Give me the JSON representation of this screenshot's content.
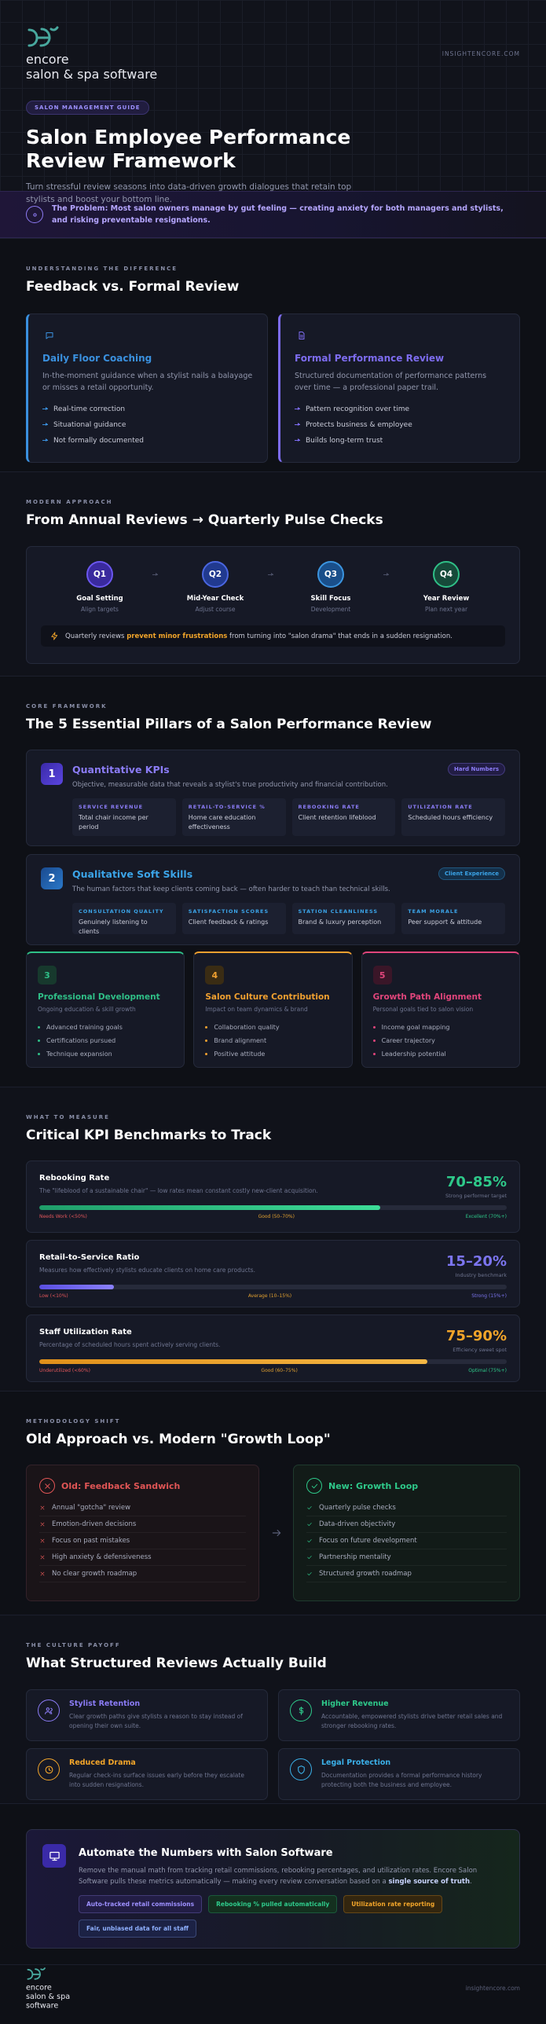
{
  "header": {
    "logo": {
      "name": "encore",
      "tagline": "salon & spa software"
    },
    "site": "INSIGHTENCORE.COM",
    "badge": "SALON MANAGEMENT GUIDE",
    "title": "Salon Employee Performance Review Framework",
    "subtitle": "Turn stressful review seasons into data-driven growth dialogues that retain top stylists and boost your bottom line."
  },
  "problem": {
    "text": "The Problem: Most salon owners manage by gut feeling — creating anxiety for both managers and stylists, and risking preventable resignations."
  },
  "comparison": {
    "eyebrow": "UNDERSTANDING THE DIFFERENCE",
    "heading": "Feedback vs. Formal Review",
    "cards": [
      {
        "title": "Daily Floor Coaching",
        "description": "In-the-moment guidance when a stylist nails a balayage or misses a retail opportunity.",
        "items": [
          "Real-time correction",
          "Situational guidance",
          "Not formally documented"
        ]
      },
      {
        "title": "Formal Performance Review",
        "description": "Structured documentation of performance patterns over time — a professional paper trail.",
        "items": [
          "Pattern recognition over time",
          "Protects business & employee",
          "Builds long-term trust"
        ]
      }
    ]
  },
  "cadence": {
    "eyebrow": "MODERN APPROACH",
    "heading": "From Annual Reviews → Quarterly Pulse Checks",
    "steps": [
      {
        "label": "Q1",
        "title": "Goal Setting",
        "subtitle": "Align targets"
      },
      {
        "label": "Q2",
        "title": "Mid-Year Check",
        "subtitle": "Adjust course"
      },
      {
        "label": "Q3",
        "title": "Skill Focus",
        "subtitle": "Development"
      },
      {
        "label": "Q4",
        "title": "Year Review",
        "subtitle": "Plan next year"
      }
    ],
    "note": {
      "text_before": "Quarterly reviews",
      "highlight": "prevent minor frustrations",
      "text_after": "from turning into \"salon drama\" that ends in a sudden resignation."
    }
  },
  "pillars": {
    "eyebrow": "CORE FRAMEWORK",
    "heading": "The 5 Essential Pillars of a Salon Performance Review",
    "main": [
      {
        "number": 1,
        "title": "Quantitative KPIs",
        "tag": "Hard Numbers",
        "description": "Objective, measurable data that reveals a stylist's true productivity and financial contribution.",
        "metrics": [
          {
            "name": "SERVICE REVENUE",
            "detail": "Total chair income per period"
          },
          {
            "name": "RETAIL-TO-SERVICE %",
            "detail": "Home care education effectiveness"
          },
          {
            "name": "REBOOKING RATE",
            "detail": "Client retention lifeblood"
          },
          {
            "name": "UTILIZATION RATE",
            "detail": "Scheduled hours efficiency"
          }
        ]
      },
      {
        "number": 2,
        "title": "Qualitative Soft Skills",
        "tag": "Client Experience",
        "description": "The human factors that keep clients coming back — often harder to teach than technical skills.",
        "metrics": [
          {
            "name": "CONSULTATION QUALITY",
            "detail": "Genuinely listening to clients"
          },
          {
            "name": "SATISFACTION SCORES",
            "detail": "Client feedback & ratings"
          },
          {
            "name": "STATION CLEANLINESS",
            "detail": "Brand & luxury perception"
          },
          {
            "name": "TEAM MORALE",
            "detail": "Peer support & attitude"
          }
        ]
      }
    ],
    "cards": [
      {
        "number": 3,
        "title": "Professional Development",
        "subtitle": "Ongoing education & skill growth",
        "items": [
          "Advanced training goals",
          "Certifications pursued",
          "Technique expansion"
        ]
      },
      {
        "number": 4,
        "title": "Salon Culture Contribution",
        "subtitle": "Impact on team dynamics & brand",
        "items": [
          "Collaboration quality",
          "Brand alignment",
          "Positive attitude"
        ]
      },
      {
        "number": 5,
        "title": "Growth Path Alignment",
        "subtitle": "Personal goals tied to salon vision",
        "items": [
          "Income goal mapping",
          "Career trajectory",
          "Leadership potential"
        ]
      }
    ]
  },
  "kpis": {
    "eyebrow": "WHAT TO MEASURE",
    "heading": "Critical KPI Benchmarks to Track",
    "items": [
      {
        "title": "Rebooking Rate",
        "description": "The \"lifeblood of a sustainable chair\" — low rates mean constant costly new-client acquisition.",
        "range": "70–85%",
        "range_note": "Strong performer target",
        "fill_percent": 73,
        "scale": [
          "Needs Work (<50%)",
          "Good (50–70%)",
          "Excellent (70%+)"
        ]
      },
      {
        "title": "Retail-to-Service Ratio",
        "description": "Measures how effectively stylists educate clients on home care products.",
        "range": "15–20%",
        "range_note": "Industry benchmark",
        "fill_percent": 16,
        "scale": [
          "Low (<10%)",
          "Average (10–15%)",
          "Strong (15%+)"
        ]
      },
      {
        "title": "Staff Utilization Rate",
        "description": "Percentage of scheduled hours spent actively serving clients.",
        "range": "75–90%",
        "range_note": "Efficiency sweet spot",
        "fill_percent": 83,
        "scale": [
          "Underutilized (<60%)",
          "Good (60–75%)",
          "Optimal (75%+)"
        ]
      }
    ]
  },
  "methodology": {
    "eyebrow": "METHODOLOGY SHIFT",
    "heading": "Old Approach vs. Modern \"Growth Loop\"",
    "old": {
      "title": "Old: Feedback Sandwich",
      "items": [
        "Annual \"gotcha\" review",
        "Emotion-driven decisions",
        "Focus on past mistakes",
        "High anxiety & defensiveness",
        "No clear growth roadmap"
      ]
    },
    "new": {
      "title": "New: Growth Loop",
      "items": [
        "Quarterly pulse checks",
        "Data-driven objectivity",
        "Focus on future development",
        "Partnership mentality",
        "Structured growth roadmap"
      ]
    }
  },
  "payoff": {
    "eyebrow": "THE CULTURE PAYOFF",
    "heading": "What Structured Reviews Actually Build",
    "cards": [
      {
        "title": "Stylist Retention",
        "description": "Clear growth paths give stylists a reason to stay instead of opening their own suite."
      },
      {
        "title": "Higher Revenue",
        "description": "Accountable, empowered stylists drive better retail sales and stronger rebooking rates."
      },
      {
        "title": "Reduced Drama",
        "description": "Regular check-ins surface issues early before they escalate into sudden resignations."
      },
      {
        "title": "Legal Protection",
        "description": "Documentation provides a formal performance history protecting both the business and employee."
      }
    ]
  },
  "cta": {
    "title": "Automate the Numbers with Salon Software",
    "text_before": "Remove the manual math from tracking retail commissions, rebooking percentages, and utilization rates. Encore Salon Software pulls these metrics automatically — making every review conversation based on a",
    "highlight": "single source of truth",
    "text_after": ".",
    "chips": [
      "Auto-tracked retail commissions",
      "Rebooking % pulled automatically",
      "Utilization rate reporting",
      "Fair, unbiased data for all staff"
    ]
  },
  "footer": {
    "logo": {
      "name": "encore",
      "tagline": "salon & spa software"
    },
    "site": "insightencore.com"
  }
}
